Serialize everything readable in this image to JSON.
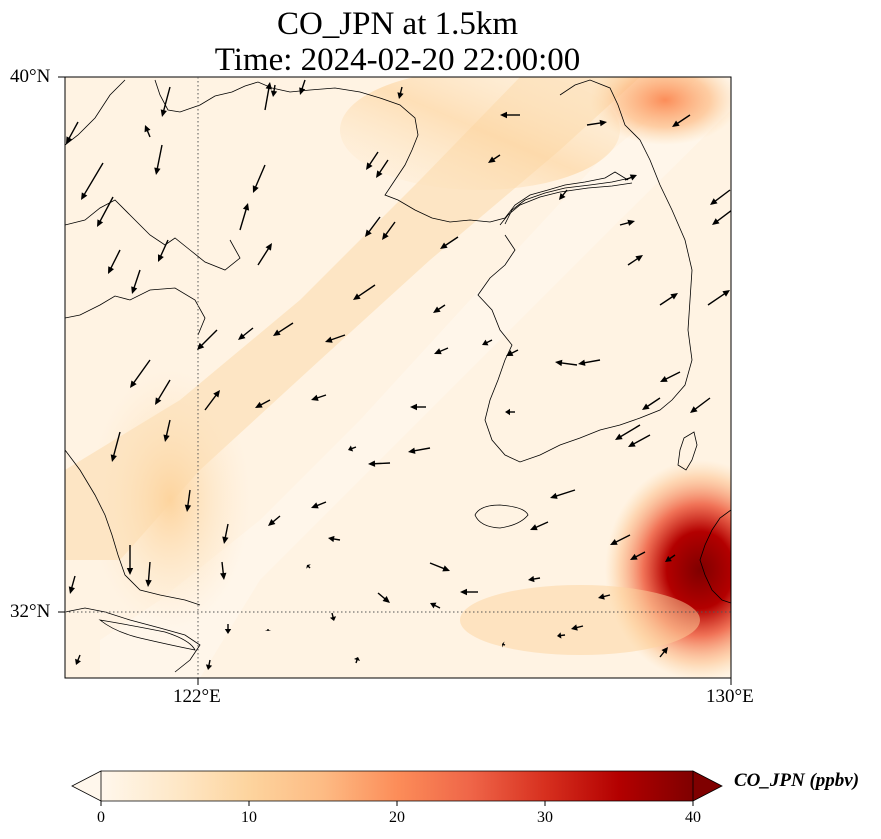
{
  "title": {
    "line1": "CO_JPN at 1.5km",
    "line2": "Time: 2024-02-20 22:00:00"
  },
  "map": {
    "variable": "CO_JPN",
    "level": "1.5km",
    "lat_range": [
      31,
      40
    ],
    "lon_range": [
      120,
      130
    ],
    "lat_ticks": [
      {
        "value": 40,
        "label": "40°N"
      },
      {
        "value": 32,
        "label": "32°N"
      }
    ],
    "lon_ticks": [
      {
        "value": 122,
        "label": "122°E"
      },
      {
        "value": 130,
        "label": "130°E"
      }
    ],
    "gridlines": "dotted at 122°E and 32°N",
    "overlay": "wind vectors (black arrows)",
    "colormap": "OrRd"
  },
  "colorbar": {
    "label": "CO_JPN (ppbv)",
    "min": 0,
    "max": 40,
    "extend": "both",
    "ticks": [
      "0",
      "10",
      "20",
      "30",
      "40"
    ],
    "colors": [
      "#fff7ec",
      "#fee8c8",
      "#fdd49e",
      "#fdbb84",
      "#fc8d59",
      "#ef6548",
      "#d7301f",
      "#b30000",
      "#7f0000"
    ]
  }
}
